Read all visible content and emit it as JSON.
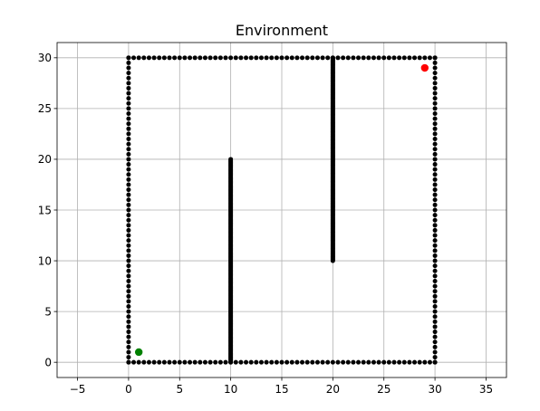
{
  "chart_data": {
    "type": "scatter",
    "title": "Environment",
    "xlabel": "",
    "ylabel": "",
    "xlim": [
      -7.0,
      37.0
    ],
    "ylim": [
      -1.5,
      31.5
    ],
    "grid": true,
    "x_ticks": [
      -5,
      0,
      5,
      10,
      15,
      20,
      25,
      30,
      35
    ],
    "y_ticks": [
      0,
      5,
      10,
      15,
      20,
      25,
      30
    ],
    "series": [
      {
        "role": "obstacles",
        "color": "#000000",
        "segments": [
          {
            "from": [
              0,
              0
            ],
            "to": [
              30,
              0
            ],
            "step": 0.5
          },
          {
            "from": [
              0,
              30
            ],
            "to": [
              30,
              30
            ],
            "step": 0.5
          },
          {
            "from": [
              0,
              0
            ],
            "to": [
              0,
              30
            ],
            "step": 0.5
          },
          {
            "from": [
              30,
              0
            ],
            "to": [
              30,
              30
            ],
            "step": 0.5
          },
          {
            "from": [
              10,
              0
            ],
            "to": [
              10,
              20
            ],
            "step": 0.1
          },
          {
            "from": [
              20,
              10
            ],
            "to": [
              20,
              30
            ],
            "step": 0.1
          }
        ]
      },
      {
        "role": "start",
        "color": "#008000",
        "points": [
          [
            1,
            1
          ]
        ]
      },
      {
        "role": "goal",
        "color": "#ff0000",
        "points": [
          [
            29,
            29
          ]
        ]
      }
    ]
  }
}
